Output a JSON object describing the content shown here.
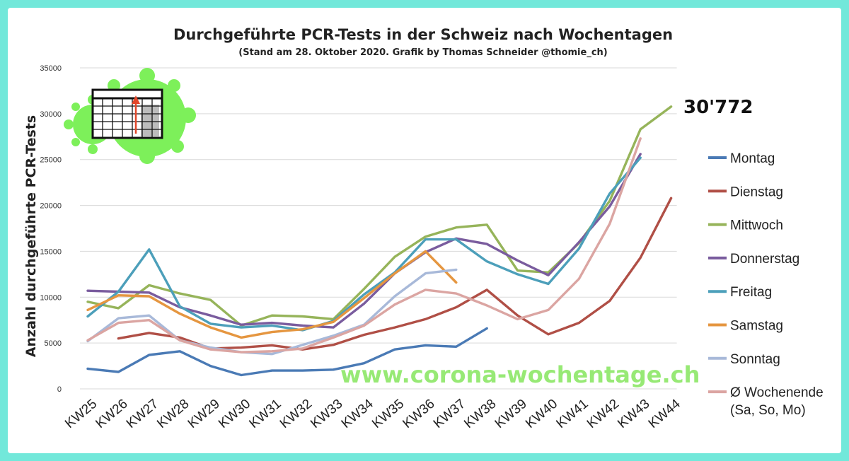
{
  "chart_data": {
    "type": "line",
    "title": "Durchgeführte PCR-Tests in der Schweiz nach Wochentagen",
    "subtitle": "(Stand am 28. Oktober 2020. Grafik by Thomas Schneider @thomie_ch)",
    "ylabel": "Anzahl durchgeführte PCR-Tests",
    "xlabel": "",
    "ylim": [
      0,
      35000
    ],
    "yticks": [
      "0",
      "5000",
      "10000",
      "15000",
      "20000",
      "25000",
      "30000",
      "35000"
    ],
    "categories": [
      "KW25",
      "KW26",
      "KW27",
      "KW28",
      "KW29",
      "KW30",
      "KW31",
      "KW32",
      "KW33",
      "KW34",
      "KW35",
      "KW36",
      "KW37",
      "KW38",
      "KW39",
      "KW40",
      "KW41",
      "KW42",
      "KW43",
      "KW44"
    ],
    "grid": true,
    "legend": "right",
    "annotation": {
      "text": "30'772",
      "category": "KW44"
    },
    "watermark": "www.corona-wochentage.ch",
    "series": [
      {
        "name": "Montag",
        "color": "#4a7ab5",
        "values": [
          2200,
          1850,
          3700,
          4100,
          2500,
          1500,
          2000,
          2000,
          2100,
          2800,
          4300,
          4750,
          4600,
          6600,
          null,
          null,
          null,
          null,
          null,
          null
        ]
      },
      {
        "name": "Dienstag",
        "color": "#b04f46",
        "values": [
          null,
          5500,
          6100,
          5600,
          4400,
          4500,
          4750,
          4300,
          4800,
          5900,
          6700,
          7600,
          8900,
          10800,
          8000,
          5950,
          7200,
          9600,
          14300,
          20800
        ]
      },
      {
        "name": "Mittwoch",
        "color": "#96b45a",
        "values": [
          9500,
          8800,
          11300,
          10400,
          9700,
          6900,
          8000,
          7900,
          7600,
          10900,
          14400,
          16600,
          17600,
          17900,
          12900,
          12700,
          15900,
          20500,
          28300,
          30772
        ]
      },
      {
        "name": "Donnerstag",
        "color": "#7a5c9e",
        "values": [
          10700,
          10600,
          10500,
          8900,
          8000,
          7000,
          7200,
          6900,
          6700,
          9300,
          12600,
          14900,
          16400,
          15800,
          14000,
          12400,
          16000,
          19900,
          25600,
          null
        ]
      },
      {
        "name": "Freitag",
        "color": "#4c9fba",
        "values": [
          7900,
          10600,
          15200,
          9000,
          7100,
          6700,
          6900,
          6400,
          7400,
          10300,
          12700,
          16300,
          16300,
          13900,
          12500,
          11450,
          15300,
          21300,
          25200,
          null
        ]
      },
      {
        "name": "Samstag",
        "color": "#e59640",
        "values": [
          8600,
          10200,
          10100,
          8200,
          6700,
          5600,
          6200,
          6500,
          7300,
          9900,
          12600,
          15000,
          11600,
          null,
          null,
          null,
          null,
          null,
          null,
          null
        ]
      },
      {
        "name": "Sonntag",
        "color": "#a8b9d9",
        "values": [
          5200,
          7700,
          8000,
          5300,
          4500,
          4000,
          3800,
          4800,
          5800,
          7000,
          10100,
          12600,
          13000,
          null,
          null,
          null,
          null,
          null,
          null,
          null
        ]
      },
      {
        "name": "Ø Wochenende",
        "name_line2": "(Sa, So, Mo)",
        "color": "#dba5a2",
        "values": [
          5300,
          7200,
          7500,
          5300,
          4300,
          4000,
          4100,
          4400,
          5600,
          6900,
          9200,
          10800,
          10400,
          9100,
          7600,
          8600,
          12000,
          18000,
          27300,
          null
        ]
      }
    ]
  },
  "icons": {
    "logo": "virus-calendar-chart-icon"
  }
}
